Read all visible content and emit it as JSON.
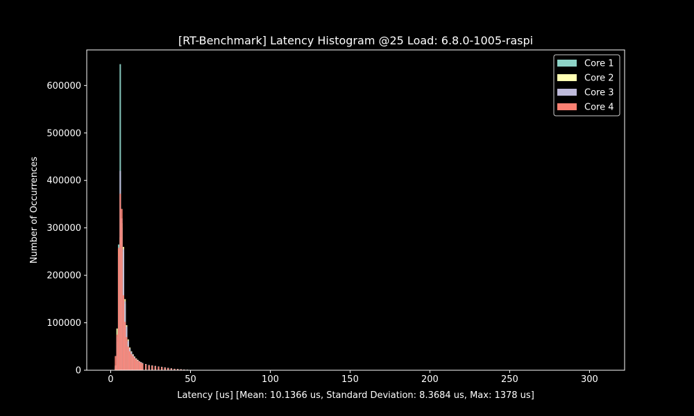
{
  "chart_data": {
    "type": "bar",
    "title": "[RT-Benchmark] Latency Histogram @25 Load: 6.8.0-1005-raspi",
    "xlabel": "Latency [us] [Mean: 10.1366 us, Standard Deviation: 8.3684 us, Max: 1378 us]",
    "ylabel": "Number of Occurrences",
    "xlim": [
      -15,
      322
    ],
    "ylim": [
      0,
      675000
    ],
    "xticks": [
      0,
      50,
      100,
      150,
      200,
      250,
      300
    ],
    "yticks": [
      0,
      100000,
      200000,
      300000,
      400000,
      500000,
      600000
    ],
    "legend_position": "top-right",
    "grid": false,
    "bar_width": 1,
    "series": [
      {
        "name": "Core 1",
        "color": "#8dd3c7",
        "x": [
          3,
          4,
          5,
          6,
          7,
          8,
          9,
          10,
          11,
          12,
          13,
          14,
          15,
          16,
          17,
          18,
          19,
          20,
          22,
          24,
          26,
          28,
          30,
          32,
          34,
          36,
          38,
          40,
          42,
          44,
          46,
          48,
          50
        ],
        "values": [
          5000,
          60000,
          265000,
          645000,
          300000,
          250000,
          140000,
          90000,
          60000,
          45000,
          38000,
          32000,
          28000,
          24000,
          21000,
          19000,
          17000,
          15000,
          13000,
          11000,
          10000,
          9000,
          8000,
          7000,
          6000,
          5000,
          4000,
          3000,
          2500,
          2000,
          1500,
          1000,
          500
        ]
      },
      {
        "name": "Core 2",
        "color": "#ffffb3",
        "x": [
          3,
          4,
          5,
          6,
          7,
          8,
          9,
          10,
          11,
          12,
          13,
          14,
          15,
          16,
          17,
          18,
          19,
          20,
          22,
          24,
          26,
          28,
          30,
          32,
          34,
          36,
          38,
          40,
          42,
          44,
          46,
          48,
          50
        ],
        "values": [
          10000,
          88000,
          255000,
          280000,
          310000,
          260000,
          150000,
          95000,
          65000,
          48000,
          40000,
          34000,
          29000,
          25000,
          22000,
          19000,
          17000,
          15000,
          13000,
          11000,
          10000,
          9000,
          8000,
          7000,
          6000,
          5000,
          4000,
          3000,
          2500,
          2000,
          1500,
          1000,
          500
        ]
      },
      {
        "name": "Core 3",
        "color": "#bebada",
        "x": [
          3,
          4,
          5,
          6,
          7,
          8,
          9,
          10,
          11,
          12,
          13,
          14,
          15,
          16,
          17,
          18,
          19,
          20,
          22,
          24,
          26,
          28,
          30,
          32,
          34,
          36,
          38,
          40,
          42,
          44,
          46,
          48,
          50
        ],
        "values": [
          8000,
          70000,
          240000,
          420000,
          320000,
          255000,
          145000,
          92000,
          62000,
          46000,
          39000,
          33000,
          28000,
          24000,
          21000,
          19000,
          17000,
          15000,
          13000,
          11000,
          10000,
          9000,
          8000,
          7000,
          6000,
          5000,
          4000,
          3000,
          2500,
          2000,
          1500,
          1000,
          500
        ]
      },
      {
        "name": "Core 4",
        "color": "#fb8072",
        "x": [
          3,
          4,
          5,
          6,
          7,
          8,
          9,
          10,
          11,
          12,
          13,
          14,
          15,
          16,
          17,
          18,
          19,
          20,
          22,
          24,
          26,
          28,
          30,
          32,
          34,
          36,
          38,
          40,
          42,
          44,
          46,
          48,
          50
        ],
        "values": [
          30000,
          75000,
          258000,
          372000,
          340000,
          158000,
          102000,
          70000,
          50000,
          40000,
          34000,
          30000,
          26000,
          23000,
          20000,
          18000,
          16000,
          14000,
          12000,
          10500,
          9500,
          8500,
          7500,
          6500,
          5500,
          4500,
          3500,
          2800,
          2200,
          1700,
          1200,
          800,
          400
        ]
      }
    ]
  }
}
